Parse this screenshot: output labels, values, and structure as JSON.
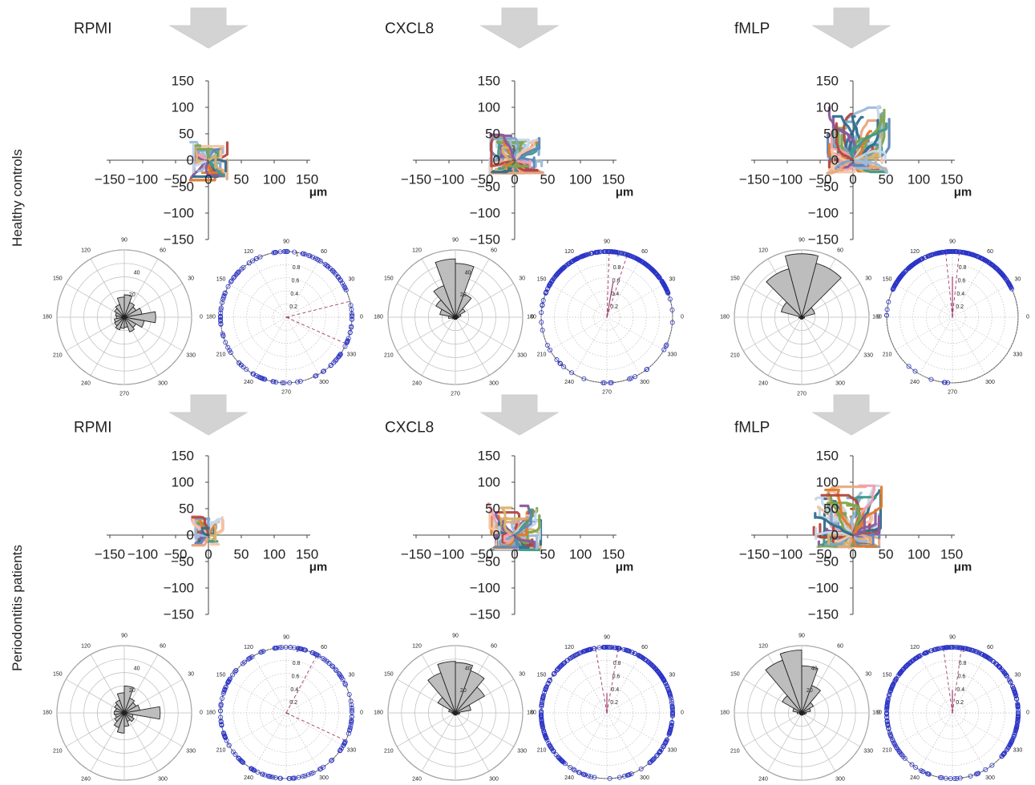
{
  "rows": [
    {
      "label": "Healthy controls"
    },
    {
      "label": "Periodontitis patients"
    }
  ],
  "colors": {
    "arrow": "#d3d3d3",
    "rose_fill": "#bdbdbd",
    "polar_marker": "#2b34c8",
    "mean_line": "#a03a6a",
    "axis": "#444444"
  },
  "track_palette": [
    "#c5d7ea",
    "#9dbbd8",
    "#e8a77e",
    "#f3c4a4",
    "#7aa6c9",
    "#b5463e",
    "#2e6f8e",
    "#7fa44a",
    "#e07b2a",
    "#8a5a9a",
    "#3f9a8a",
    "#d9b26a",
    "#f0a0b0",
    "#5e86b8"
  ],
  "chart_data": [
    {
      "type": "scatter",
      "role": "trajectory",
      "row": 0,
      "col": 0,
      "title": "RPMI",
      "xlabel": "μm",
      "xlim": [
        -150,
        150
      ],
      "ylim": [
        -150,
        150
      ],
      "x_ticks": [
        "−150",
        "−100",
        "−50",
        "0",
        "50",
        "100",
        "150"
      ],
      "y_ticks": [
        "150",
        "100",
        "50",
        "0",
        "−50",
        "−100",
        "−150"
      ],
      "extent": [
        30,
        28,
        35,
        38
      ],
      "tracks": 40,
      "seed": 11
    },
    {
      "type": "scatter",
      "role": "trajectory",
      "row": 0,
      "col": 1,
      "title": "CXCL8",
      "xlabel": "μm",
      "xlim": [
        -150,
        150
      ],
      "ylim": [
        -150,
        150
      ],
      "x_ticks": [
        "−150",
        "−100",
        "−50",
        "0",
        "50",
        "100",
        "150"
      ],
      "y_ticks": [
        "150",
        "100",
        "50",
        "0",
        "−50",
        "−100",
        "−150"
      ],
      "extent": [
        45,
        38,
        50,
        25
      ],
      "tracks": 80,
      "seed": 23
    },
    {
      "type": "scatter",
      "role": "trajectory",
      "row": 0,
      "col": 2,
      "title": "fMLP",
      "xlabel": "μm",
      "xlim": [
        -150,
        150
      ],
      "ylim": [
        -150,
        150
      ],
      "x_ticks": [
        "−150",
        "−100",
        "−50",
        "0",
        "50",
        "100",
        "150"
      ],
      "y_ticks": [
        "150",
        "100",
        "50",
        "0",
        "−50",
        "−100",
        "−150"
      ],
      "extent": [
        55,
        40,
        110,
        25
      ],
      "tracks": 90,
      "seed": 37
    },
    {
      "type": "scatter",
      "role": "trajectory",
      "row": 1,
      "col": 0,
      "title": "RPMI",
      "xlabel": "μm",
      "xlim": [
        -150,
        150
      ],
      "ylim": [
        -150,
        150
      ],
      "x_ticks": [
        "−150",
        "−100",
        "−50",
        "0",
        "50",
        "100",
        "150"
      ],
      "y_ticks": [
        "150",
        "100",
        "50",
        "0",
        "−50",
        "−100",
        "−150"
      ],
      "extent": [
        22,
        25,
        35,
        20
      ],
      "tracks": 35,
      "seed": 51
    },
    {
      "type": "scatter",
      "role": "trajectory",
      "row": 1,
      "col": 1,
      "title": "CXCL8",
      "xlabel": "μm",
      "xlim": [
        -150,
        150
      ],
      "ylim": [
        -150,
        150
      ],
      "x_ticks": [
        "−150",
        "−100",
        "−50",
        "0",
        "50",
        "100",
        "150"
      ],
      "y_ticks": [
        "150",
        "100",
        "50",
        "0",
        "−50",
        "−100",
        "−150"
      ],
      "extent": [
        40,
        40,
        60,
        30
      ],
      "tracks": 70,
      "seed": 67
    },
    {
      "type": "scatter",
      "role": "trajectory",
      "row": 1,
      "col": 2,
      "title": "fMLP",
      "xlabel": "μm",
      "xlim": [
        -150,
        150
      ],
      "ylim": [
        -150,
        150
      ],
      "x_ticks": [
        "−150",
        "−100",
        "−50",
        "0",
        "50",
        "100",
        "150"
      ],
      "y_ticks": [
        "150",
        "100",
        "50",
        "0",
        "−50",
        "−100",
        "−150"
      ],
      "extent": [
        45,
        60,
        95,
        25
      ],
      "tracks": 80,
      "seed": 79
    },
    {
      "type": "bar",
      "role": "rose",
      "row": 0,
      "col": 0,
      "angle_ticks": [
        "0",
        "30",
        "60",
        "90",
        "120",
        "150",
        "180",
        "210",
        "240",
        "270",
        "300",
        "330"
      ],
      "radial_ticks": [
        "20",
        "40"
      ],
      "rmax": 60,
      "bin_width_deg": 20,
      "bins": [
        {
          "angle": 0,
          "value": 28
        },
        {
          "angle": 20,
          "value": 16
        },
        {
          "angle": 40,
          "value": 12
        },
        {
          "angle": 60,
          "value": 14
        },
        {
          "angle": 80,
          "value": 20
        },
        {
          "angle": 100,
          "value": 18
        },
        {
          "angle": 120,
          "value": 12
        },
        {
          "angle": 140,
          "value": 10
        },
        {
          "angle": 160,
          "value": 8
        },
        {
          "angle": 180,
          "value": 7
        },
        {
          "angle": 200,
          "value": 9
        },
        {
          "angle": 220,
          "value": 10
        },
        {
          "angle": 240,
          "value": 12
        },
        {
          "angle": 260,
          "value": 10
        },
        {
          "angle": 280,
          "value": 9
        },
        {
          "angle": 300,
          "value": 14
        },
        {
          "angle": 320,
          "value": 12
        },
        {
          "angle": 340,
          "value": 18
        }
      ]
    },
    {
      "type": "bar",
      "role": "rose",
      "row": 0,
      "col": 1,
      "angle_ticks": [
        "0",
        "30",
        "60",
        "90",
        "120",
        "150",
        "180",
        "210",
        "240",
        "270",
        "300",
        "330"
      ],
      "radial_ticks": [
        "20",
        "40"
      ],
      "rmax": 60,
      "bin_width_deg": 20,
      "bins": [
        {
          "angle": 0,
          "value": 3
        },
        {
          "angle": 20,
          "value": 5
        },
        {
          "angle": 40,
          "value": 10
        },
        {
          "angle": 60,
          "value": 22
        },
        {
          "angle": 80,
          "value": 48
        },
        {
          "angle": 100,
          "value": 52
        },
        {
          "angle": 120,
          "value": 30
        },
        {
          "angle": 140,
          "value": 20
        },
        {
          "angle": 160,
          "value": 14
        },
        {
          "angle": 180,
          "value": 6
        },
        {
          "angle": 200,
          "value": 3
        },
        {
          "angle": 220,
          "value": 2
        },
        {
          "angle": 240,
          "value": 2
        },
        {
          "angle": 260,
          "value": 2
        },
        {
          "angle": 280,
          "value": 2
        },
        {
          "angle": 300,
          "value": 2
        },
        {
          "angle": 320,
          "value": 2
        },
        {
          "angle": 340,
          "value": 2
        }
      ]
    },
    {
      "type": "bar",
      "role": "rose",
      "row": 0,
      "col": 2,
      "angle_ticks": [
        "0",
        "30",
        "60",
        "90",
        "120",
        "150",
        "180",
        "210",
        "240",
        "270",
        "300",
        "330"
      ],
      "radial_ticks": [],
      "rmax": 70,
      "bin_width_deg": 30,
      "bins": [
        {
          "angle": 0,
          "value": 3
        },
        {
          "angle": 30,
          "value": 14
        },
        {
          "angle": 60,
          "value": 58
        },
        {
          "angle": 90,
          "value": 66
        },
        {
          "angle": 120,
          "value": 52
        },
        {
          "angle": 150,
          "value": 22
        },
        {
          "angle": 180,
          "value": 3
        },
        {
          "angle": 210,
          "value": 2
        },
        {
          "angle": 240,
          "value": 2
        },
        {
          "angle": 270,
          "value": 2
        },
        {
          "angle": 300,
          "value": 2
        },
        {
          "angle": 330,
          "value": 2
        }
      ]
    },
    {
      "type": "bar",
      "role": "rose",
      "row": 1,
      "col": 0,
      "angle_ticks": [
        "0",
        "30",
        "60",
        "90",
        "120",
        "150",
        "180",
        "210",
        "240",
        "270",
        "300",
        "330"
      ],
      "radial_ticks": [
        "20",
        "40"
      ],
      "rmax": 60,
      "bin_width_deg": 20,
      "bins": [
        {
          "angle": 0,
          "value": 32
        },
        {
          "angle": 20,
          "value": 14
        },
        {
          "angle": 40,
          "value": 12
        },
        {
          "angle": 60,
          "value": 14
        },
        {
          "angle": 80,
          "value": 24
        },
        {
          "angle": 100,
          "value": 18
        },
        {
          "angle": 120,
          "value": 12
        },
        {
          "angle": 140,
          "value": 10
        },
        {
          "angle": 160,
          "value": 8
        },
        {
          "angle": 180,
          "value": 9
        },
        {
          "angle": 200,
          "value": 8
        },
        {
          "angle": 220,
          "value": 10
        },
        {
          "angle": 240,
          "value": 14
        },
        {
          "angle": 260,
          "value": 18
        },
        {
          "angle": 280,
          "value": 12
        },
        {
          "angle": 300,
          "value": 8
        },
        {
          "angle": 320,
          "value": 10
        },
        {
          "angle": 340,
          "value": 8
        }
      ]
    },
    {
      "type": "bar",
      "role": "rose",
      "row": 1,
      "col": 1,
      "angle_ticks": [
        "0",
        "30",
        "60",
        "90",
        "120",
        "150",
        "180",
        "210",
        "240",
        "270",
        "300",
        "330"
      ],
      "radial_ticks": [
        "20",
        "40"
      ],
      "rmax": 60,
      "bin_width_deg": 20,
      "bins": [
        {
          "angle": 0,
          "value": 4
        },
        {
          "angle": 20,
          "value": 14
        },
        {
          "angle": 40,
          "value": 30
        },
        {
          "angle": 60,
          "value": 40
        },
        {
          "angle": 80,
          "value": 45
        },
        {
          "angle": 100,
          "value": 46
        },
        {
          "angle": 120,
          "value": 38
        },
        {
          "angle": 140,
          "value": 18
        },
        {
          "angle": 160,
          "value": 6
        },
        {
          "angle": 180,
          "value": 3
        },
        {
          "angle": 200,
          "value": 2
        },
        {
          "angle": 220,
          "value": 2
        },
        {
          "angle": 240,
          "value": 2
        },
        {
          "angle": 260,
          "value": 2
        },
        {
          "angle": 280,
          "value": 2
        },
        {
          "angle": 300,
          "value": 2
        },
        {
          "angle": 320,
          "value": 2
        },
        {
          "angle": 340,
          "value": 3
        }
      ]
    },
    {
      "type": "bar",
      "role": "rose",
      "row": 1,
      "col": 2,
      "angle_ticks": [
        "0",
        "30",
        "60",
        "90",
        "120",
        "150",
        "180",
        "210",
        "240",
        "270",
        "300",
        "330"
      ],
      "radial_ticks": [
        "20",
        "40"
      ],
      "rmax": 60,
      "bin_width_deg": 20,
      "bins": [
        {
          "angle": 0,
          "value": 4
        },
        {
          "angle": 20,
          "value": 8
        },
        {
          "angle": 40,
          "value": 12
        },
        {
          "angle": 60,
          "value": 26
        },
        {
          "angle": 80,
          "value": 42
        },
        {
          "angle": 100,
          "value": 56
        },
        {
          "angle": 120,
          "value": 50
        },
        {
          "angle": 140,
          "value": 20
        },
        {
          "angle": 160,
          "value": 8
        },
        {
          "angle": 180,
          "value": 4
        },
        {
          "angle": 200,
          "value": 2
        },
        {
          "angle": 220,
          "value": 2
        },
        {
          "angle": 240,
          "value": 2
        },
        {
          "angle": 260,
          "value": 2
        },
        {
          "angle": 280,
          "value": 2
        },
        {
          "angle": 300,
          "value": 2
        },
        {
          "angle": 320,
          "value": 2
        },
        {
          "angle": 340,
          "value": 3
        }
      ]
    },
    {
      "type": "scatter",
      "role": "polar-directions",
      "row": 0,
      "col": 0,
      "angle_ticks": [
        "0",
        "30",
        "60",
        "90",
        "120",
        "150",
        "180",
        "210",
        "240",
        "270",
        "300",
        "330"
      ],
      "radial_ticks": [
        "0.2",
        "0.4",
        "0.6",
        "0.8",
        "1"
      ],
      "mean_angle_deg": 350,
      "mean_length": 0.05,
      "ci_angles_deg": [
        14,
        336
      ],
      "density": [
        {
          "from": 0,
          "to": 360,
          "count": 140
        }
      ],
      "seed": 101
    },
    {
      "type": "scatter",
      "role": "polar-directions",
      "row": 0,
      "col": 1,
      "angle_ticks": [
        "0",
        "30",
        "60",
        "90",
        "120",
        "150",
        "180",
        "210",
        "240",
        "270",
        "300",
        "330"
      ],
      "radial_ticks": [
        "0.2",
        "0.4",
        "0.6",
        "0.8",
        "1"
      ],
      "mean_angle_deg": 80,
      "mean_length": 0.55,
      "ci_angles_deg": [
        72,
        88
      ],
      "density": [
        {
          "from": 20,
          "to": 160,
          "count": 260
        },
        {
          "from": 160,
          "to": 380,
          "count": 30
        }
      ],
      "seed": 202
    },
    {
      "type": "scatter",
      "role": "polar-directions",
      "row": 0,
      "col": 2,
      "angle_ticks": [
        "0",
        "30",
        "60",
        "90",
        "120",
        "150",
        "180",
        "210",
        "240",
        "270",
        "300",
        "330"
      ],
      "radial_ticks": [
        "0.2",
        "0.4",
        "0.6",
        "0.8"
      ],
      "mean_angle_deg": 90,
      "mean_length": 0.62,
      "ci_angles_deg": [
        84,
        96
      ],
      "density": [
        {
          "from": 25,
          "to": 155,
          "count": 280
        },
        {
          "from": 155,
          "to": 385,
          "count": 10
        }
      ],
      "seed": 303
    },
    {
      "type": "scatter",
      "role": "polar-directions",
      "row": 1,
      "col": 0,
      "angle_ticks": [
        "0",
        "30",
        "60",
        "90",
        "120",
        "150",
        "180",
        "210",
        "240",
        "270",
        "300",
        "330"
      ],
      "radial_ticks": [
        "0.2",
        "0.4",
        "0.6",
        "0.8",
        "1"
      ],
      "mean_angle_deg": 340,
      "mean_length": 0.05,
      "ci_angles_deg": [
        62,
        335
      ],
      "density": [
        {
          "from": 0,
          "to": 360,
          "count": 160
        }
      ],
      "seed": 404
    },
    {
      "type": "scatter",
      "role": "polar-directions",
      "row": 1,
      "col": 1,
      "angle_ticks": [
        "0",
        "30",
        "60",
        "90",
        "120",
        "150",
        "180",
        "210",
        "240",
        "270",
        "300",
        "330"
      ],
      "radial_ticks": [
        "0.2",
        "0.4",
        "0.6",
        "0.8",
        "1"
      ],
      "mean_angle_deg": 90,
      "mean_length": 0.3,
      "ci_angles_deg": [
        80,
        100
      ],
      "density": [
        {
          "from": -50,
          "to": 230,
          "count": 300
        },
        {
          "from": 230,
          "to": 310,
          "count": 20
        }
      ],
      "seed": 505
    },
    {
      "type": "scatter",
      "role": "polar-directions",
      "row": 1,
      "col": 2,
      "angle_ticks": [
        "0",
        "30",
        "60",
        "90",
        "120",
        "150",
        "180",
        "210",
        "240",
        "270",
        "300",
        "330"
      ],
      "radial_ticks": [
        "0.2",
        "0.4",
        "0.6",
        "0.8",
        "1"
      ],
      "mean_angle_deg": 90,
      "mean_length": 0.35,
      "ci_angles_deg": [
        82,
        98
      ],
      "density": [
        {
          "from": -40,
          "to": 220,
          "count": 300
        },
        {
          "from": 220,
          "to": 320,
          "count": 25
        }
      ],
      "seed": 606
    }
  ]
}
